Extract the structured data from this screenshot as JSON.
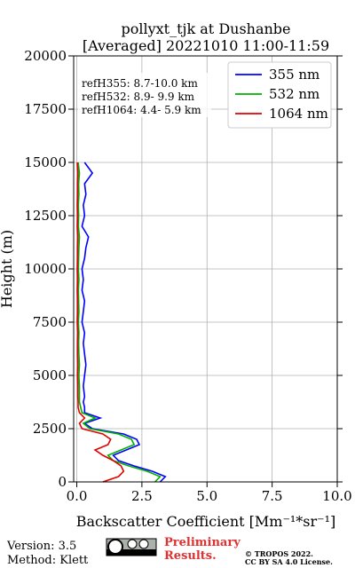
{
  "chart_data": {
    "type": "profile",
    "title": [
      "pollyxt_tjk at Dushanbe",
      "[Averaged] 20221010 11:00-11:59"
    ],
    "xlabel": "Backscatter Coefficient [Mm⁻¹*sr⁻¹]",
    "ylabel": "Height (m)",
    "xlim": [
      -0.12,
      10
    ],
    "ylim": [
      0,
      20000
    ],
    "xticks": [
      {
        "value": 0,
        "label": "0.0"
      },
      {
        "value": 2.5,
        "label": "2.5"
      },
      {
        "value": 5,
        "label": "5.0"
      },
      {
        "value": 7.5,
        "label": "7.5"
      },
      {
        "value": 10,
        "label": "10.0"
      }
    ],
    "yticks": [
      0,
      2500,
      5000,
      7500,
      10000,
      12500,
      15000,
      17500,
      20000
    ],
    "grid": true,
    "legend": "upper right",
    "annotations": [
      "refH355:  8.7-10.0 km",
      "refH532:  8.9- 9.9 km",
      "refH1064:  4.4- 5.9 km"
    ],
    "y": [
      0,
      250,
      500,
      750,
      1000,
      1250,
      1500,
      1750,
      2000,
      2250,
      2500,
      2750,
      3000,
      3250,
      3500,
      3750,
      4000,
      4500,
      5000,
      5500,
      6000,
      6500,
      7000,
      7500,
      8000,
      8500,
      9000,
      9500,
      10000,
      10500,
      11000,
      11500,
      12000,
      12500,
      13000,
      13500,
      14000,
      14500,
      15000
    ],
    "series": [
      {
        "name": "355 nm",
        "color": "#0000ff",
        "values": [
          3.2,
          3.4,
          2.9,
          2.2,
          1.6,
          1.4,
          1.9,
          2.4,
          2.3,
          1.8,
          0.6,
          0.3,
          0.9,
          0.3,
          0.3,
          0.25,
          0.3,
          0.25,
          0.3,
          0.35,
          0.3,
          0.25,
          0.3,
          0.2,
          0.25,
          0.3,
          0.2,
          0.25,
          0.2,
          0.3,
          0.35,
          0.45,
          0.2,
          0.3,
          0.25,
          0.35,
          0.3,
          0.6,
          0.3
        ]
      },
      {
        "name": "532 nm",
        "color": "#00b000",
        "values": [
          3.0,
          3.2,
          2.7,
          2.0,
          1.4,
          1.2,
          1.7,
          2.2,
          2.1,
          1.6,
          0.5,
          0.25,
          0.7,
          0.2,
          0.15,
          0.1,
          0.1,
          0.1,
          0.08,
          0.1,
          0.08,
          0.07,
          0.08,
          0.06,
          0.08,
          0.07,
          0.06,
          0.08,
          0.06,
          0.07,
          0.08,
          0.1,
          0.06,
          0.07,
          0.06,
          0.08,
          0.07,
          0.1,
          0.05
        ]
      },
      {
        "name": "1064 nm",
        "color": "#e00000",
        "values": [
          1.0,
          1.6,
          1.8,
          1.7,
          1.4,
          1.0,
          0.7,
          1.2,
          1.3,
          1.0,
          0.2,
          0.1,
          0.3,
          0.1,
          0.05,
          0.05,
          0.04,
          0.04,
          0.03,
          0.04,
          0.03,
          0.03,
          0.04,
          0.02,
          0.03,
          0.03,
          0.02,
          0.03,
          0.02,
          0.03,
          0.03,
          0.04,
          0.02,
          0.03,
          0.02,
          0.03,
          0.03,
          0.04,
          0.02
        ]
      }
    ]
  },
  "footer": {
    "version": "Version: 3.5",
    "method": "Method: Klett",
    "preliminary": [
      "Preliminary",
      "Results."
    ],
    "copyright": [
      "© TROPOS 2022.",
      "CC BY SA 4.0 License."
    ]
  }
}
